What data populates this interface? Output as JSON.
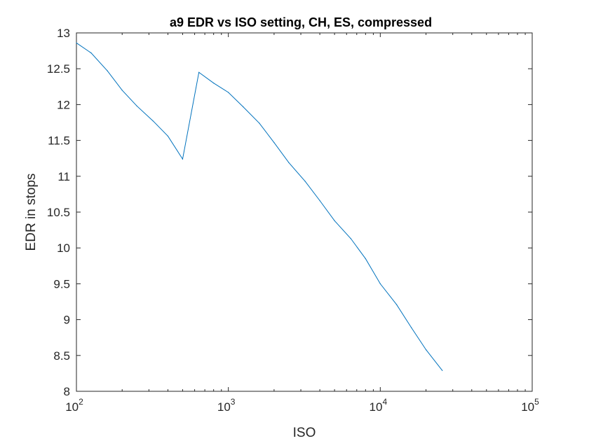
{
  "colors": {
    "series": "#0072bd",
    "axis": "#262626",
    "background": "#ffffff"
  },
  "chart_data": {
    "type": "line",
    "title": "a9 EDR vs ISO setting, CH, ES, compressed",
    "xlabel": "ISO",
    "ylabel": "EDR in stops",
    "x_scale": "log",
    "xlim": [
      100,
      100000
    ],
    "ylim": [
      8,
      13
    ],
    "grid": false,
    "legend": "none",
    "x_ticks": [
      {
        "value": 100,
        "base": "10",
        "exp": "2"
      },
      {
        "value": 1000,
        "base": "10",
        "exp": "3"
      },
      {
        "value": 10000,
        "base": "10",
        "exp": "4"
      },
      {
        "value": 100000,
        "base": "10",
        "exp": "5"
      }
    ],
    "y_ticks": [
      {
        "value": 8,
        "label": "8"
      },
      {
        "value": 8.5,
        "label": "8.5"
      },
      {
        "value": 9,
        "label": "9"
      },
      {
        "value": 9.5,
        "label": "9.5"
      },
      {
        "value": 10,
        "label": "10"
      },
      {
        "value": 10.5,
        "label": "10.5"
      },
      {
        "value": 11,
        "label": "11"
      },
      {
        "value": 11.5,
        "label": "11.5"
      },
      {
        "value": 12,
        "label": "12"
      },
      {
        "value": 12.5,
        "label": "12.5"
      },
      {
        "value": 13,
        "label": "13"
      }
    ],
    "series": [
      {
        "x": [
          100,
          125,
          160,
          200,
          250,
          320,
          400,
          500,
          640,
          800,
          1000,
          1250,
          1600,
          2000,
          2500,
          3200,
          4000,
          5000,
          6400,
          8000,
          10000,
          12800,
          16000,
          20000,
          25600
        ],
        "y": [
          12.86,
          12.72,
          12.47,
          12.2,
          11.98,
          11.77,
          11.56,
          11.24,
          12.45,
          12.3,
          12.17,
          11.97,
          11.74,
          11.47,
          11.19,
          10.93,
          10.66,
          10.38,
          10.13,
          9.85,
          9.5,
          9.21,
          8.89,
          8.58,
          8.29
        ]
      }
    ]
  }
}
